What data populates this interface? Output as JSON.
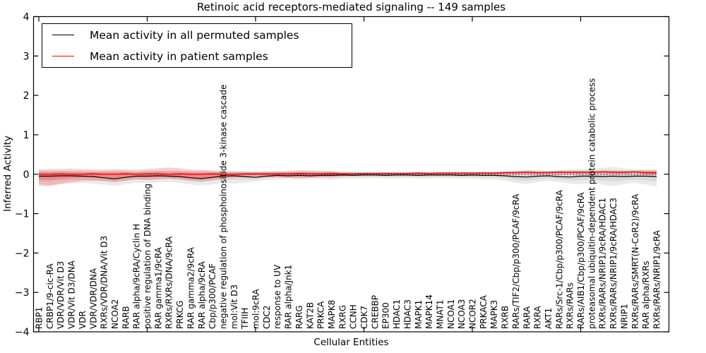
{
  "title": "Retinoic acid receptors-mediated signaling -- 149 samples",
  "legend": {
    "entries": [
      {
        "label": "Mean activity in all permuted samples",
        "color": "#000000"
      },
      {
        "label": "Mean activity in patient samples",
        "color": "#ff0000"
      }
    ],
    "position": "upper left"
  },
  "axes": {
    "ylabel": "Inferred Activity",
    "xlabel": "Cellular Entities",
    "ylim": [
      -4,
      4
    ],
    "ytick_values": [
      4,
      3,
      2,
      1,
      0,
      -1,
      -2,
      -3,
      -4
    ],
    "ytick_labels": [
      "4",
      "3",
      "2",
      "1",
      "0",
      "−1",
      "−2",
      "−3",
      "−4"
    ],
    "xtick_major_indices": [
      0,
      10,
      20,
      30,
      40,
      50
    ],
    "grid": false
  },
  "chart_data": {
    "type": "line",
    "title": "Retinoic acid receptors-mediated signaling -- 149 samples",
    "xlabel": "Cellular Entities",
    "ylabel": "Inferred Activity",
    "ylim": [
      -4,
      4
    ],
    "grid": false,
    "legend_position": "upper left",
    "zero_line": true,
    "categories": [
      "RBP1",
      "CRBP1/9-cic-RA",
      "VDR/VDR/Vit D3",
      "VDR/Vit D3/DNA",
      "VDR",
      "VDR/VDR/DNA",
      "RXRs/VDR/DNA/Vit D3",
      "NCOA2",
      "RARB",
      "RAR alpha/9cRA/Cyclin H",
      "positive regulation of DNA binding",
      "RAR gamma1/9cRA",
      "RXRs/RXRs/DNA/9cRA",
      "PRKCG",
      "RAR gamma2/9cRA",
      "RAR alpha/9cRA",
      "Cbp/p300/PCAF",
      "negative regulation of phosphoinositide 3-kinase cascade",
      "mol:Vit D3",
      "TFIIH",
      "mol:9cRA",
      "CDC2",
      "response to UV",
      "RAR alpha/Jnk1",
      "RARG",
      "KAT2B",
      "PRKCA",
      "MAPK8",
      "RXRG",
      "CCNH",
      "CDK7",
      "CREBBP",
      "EP300",
      "HDAC1",
      "HDAC3",
      "MAPK1",
      "MAPK14",
      "MNAT1",
      "NCOA1",
      "NCOA3",
      "NCOR2",
      "PRKACA",
      "MAPK3",
      "RXRB",
      "RARs/TIF2/Cbp/p300/PCAF/9cRA",
      "RARA",
      "RXRA",
      "AKT1",
      "RARs/Src-1/Cbp/p300/PCAF/9cRA",
      "RXRs/RARs",
      "RARs/AIB1/Cbp/p300/PCAF/9cRA",
      "proteasomal ubiquitin-dependent protein catabolic process",
      "RXRs/RARs/NRIP1/9cRA/HDAC1",
      "RXRs/RARs/NRIP1/9cRA/HDAC3",
      "NRIP1",
      "RXRs/RARs/SMRT(N-CoR2)/9cRA",
      "RAR alpha/RXRs",
      "RXRs/RARs/NRIP1/9cRA"
    ],
    "series": [
      {
        "name": "Mean activity in all permuted samples",
        "color": "#000000",
        "band_color": "#808080",
        "values": [
          -0.05,
          -0.05,
          -0.04,
          -0.04,
          -0.05,
          -0.06,
          -0.09,
          -0.12,
          -0.08,
          -0.05,
          -0.05,
          -0.04,
          -0.05,
          -0.06,
          -0.09,
          -0.11,
          -0.08,
          -0.05,
          -0.04,
          -0.06,
          -0.08,
          -0.05,
          -0.03,
          -0.04,
          -0.03,
          -0.04,
          -0.03,
          -0.03,
          -0.02,
          -0.03,
          -0.02,
          -0.02,
          -0.03,
          -0.02,
          -0.02,
          -0.03,
          -0.02,
          -0.02,
          -0.02,
          -0.03,
          -0.02,
          -0.03,
          -0.03,
          -0.04,
          -0.06,
          -0.07,
          -0.05,
          -0.04,
          -0.06,
          -0.07,
          -0.05,
          -0.05,
          -0.06,
          -0.05,
          -0.06,
          -0.05,
          -0.05,
          -0.06
        ],
        "band_upper": [
          0.09,
          0.08,
          0.08,
          0.07,
          0.07,
          0.06,
          0.07,
          0.08,
          0.07,
          0.06,
          0.06,
          0.07,
          0.06,
          0.06,
          0.07,
          0.08,
          0.07,
          0.06,
          0.08,
          0.08,
          0.07,
          0.06,
          0.06,
          0.05,
          0.06,
          0.06,
          0.05,
          0.06,
          0.06,
          0.05,
          0.05,
          0.05,
          0.06,
          0.05,
          0.05,
          0.06,
          0.05,
          0.05,
          0.06,
          0.05,
          0.06,
          0.06,
          0.06,
          0.07,
          0.09,
          0.12,
          0.1,
          0.08,
          0.1,
          0.12,
          0.13,
          0.12,
          0.16,
          0.19,
          0.15,
          0.12,
          0.13,
          0.12
        ],
        "band_lower": [
          -0.32,
          -0.3,
          -0.26,
          -0.24,
          -0.22,
          -0.24,
          -0.27,
          -0.3,
          -0.25,
          -0.22,
          -0.23,
          -0.21,
          -0.2,
          -0.22,
          -0.26,
          -0.29,
          -0.26,
          -0.22,
          -0.24,
          -0.22,
          -0.18,
          -0.15,
          -0.14,
          -0.12,
          -0.14,
          -0.13,
          -0.12,
          -0.14,
          -0.12,
          -0.11,
          -0.11,
          -0.1,
          -0.11,
          -0.11,
          -0.1,
          -0.11,
          -0.11,
          -0.1,
          -0.11,
          -0.11,
          -0.12,
          -0.13,
          -0.13,
          -0.16,
          -0.22,
          -0.25,
          -0.2,
          -0.17,
          -0.2,
          -0.24,
          -0.26,
          -0.22,
          -0.26,
          -0.3,
          -0.25,
          -0.22,
          -0.26,
          -0.32
        ]
      },
      {
        "name": "Mean activity in patient samples",
        "color": "#ff0000",
        "band_color": "#ff0000",
        "values": [
          0.0,
          0.0,
          0.01,
          0.0,
          0.0,
          0.01,
          0.0,
          0.0,
          0.01,
          0.0,
          0.01,
          0.01,
          0.0,
          0.01,
          0.0,
          0.0,
          0.01,
          0.0,
          0.0,
          0.01,
          0.01,
          0.01,
          0.01,
          0.01,
          0.02,
          0.01,
          0.01,
          0.02,
          0.01,
          0.01,
          0.02,
          0.02,
          0.02,
          0.02,
          0.02,
          0.03,
          0.02,
          0.03,
          0.03,
          0.03,
          0.03,
          0.03,
          0.03,
          0.04,
          0.04,
          0.05,
          0.04,
          0.04,
          0.05,
          0.05,
          0.05,
          0.05,
          0.06,
          0.05,
          0.05,
          0.06,
          0.04,
          0.04
        ],
        "band_upper": [
          0.12,
          0.13,
          0.13,
          0.14,
          0.13,
          0.12,
          0.12,
          0.13,
          0.12,
          0.11,
          0.13,
          0.15,
          0.17,
          0.15,
          0.12,
          0.11,
          0.1,
          0.08,
          0.07,
          0.06,
          0.06,
          0.07,
          0.08,
          0.09,
          0.1,
          0.1,
          0.09,
          0.08,
          0.06,
          0.05,
          0.04,
          0.04,
          0.04,
          0.04,
          0.04,
          0.05,
          0.04,
          0.05,
          0.05,
          0.05,
          0.05,
          0.06,
          0.06,
          0.07,
          0.08,
          0.09,
          0.08,
          0.08,
          0.09,
          0.09,
          0.09,
          0.09,
          0.1,
          0.1,
          0.09,
          0.1,
          0.1,
          0.11
        ],
        "band_lower": [
          -0.26,
          -0.29,
          -0.24,
          -0.2,
          -0.17,
          -0.16,
          -0.17,
          -0.19,
          -0.16,
          -0.13,
          -0.15,
          -0.13,
          -0.11,
          -0.13,
          -0.16,
          -0.18,
          -0.15,
          -0.11,
          -0.09,
          -0.07,
          -0.06,
          -0.07,
          -0.08,
          -0.09,
          -0.1,
          -0.09,
          -0.08,
          -0.07,
          -0.05,
          -0.03,
          -0.02,
          -0.01,
          -0.01,
          -0.01,
          -0.01,
          -0.01,
          -0.01,
          -0.01,
          -0.01,
          -0.01,
          -0.01,
          0.0,
          0.0,
          0.0,
          0.01,
          0.01,
          0.01,
          0.01,
          0.01,
          0.01,
          0.01,
          0.01,
          0.02,
          0.01,
          0.01,
          0.02,
          -0.01,
          -0.02
        ]
      }
    ]
  }
}
